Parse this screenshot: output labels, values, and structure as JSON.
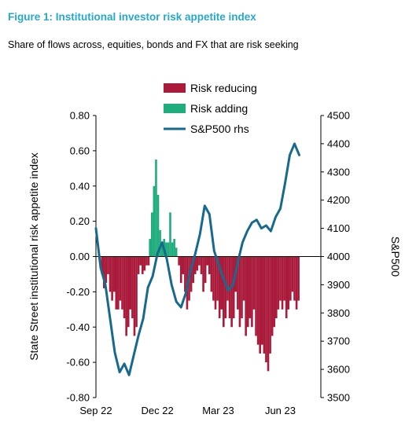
{
  "header": {
    "title": "Figure 1: Institutional investor risk appetite index",
    "subtitle": "Share of flows across, equities, bonds and FX that are risk seeking"
  },
  "chart_data": {
    "type": "bar",
    "ylabel": "State Street institutional risk appetite index",
    "y2label": "S&P500",
    "ylim": [
      -0.8,
      0.8
    ],
    "yticks": [
      "0.80",
      "0.60",
      "0.40",
      "0.20",
      "0.00",
      "-0.20",
      "-0.40",
      "-0.60",
      "-0.80"
    ],
    "y2lim": [
      3500,
      4500
    ],
    "y2ticks": [
      "4500",
      "4400",
      "4300",
      "4200",
      "4100",
      "4000",
      "3900",
      "3800",
      "3700",
      "3600",
      "3500"
    ],
    "xticks": [
      {
        "label": "Sep 22",
        "x": "2022-09-01"
      },
      {
        "label": "Dec 22",
        "x": "2022-12-01"
      },
      {
        "label": "Mar 23",
        "x": "2023-03-01"
      },
      {
        "label": "Jun 23",
        "x": "2023-06-01"
      }
    ],
    "xlim": [
      "2022-09-01",
      "2023-07-31"
    ],
    "legend_placement": "top-center",
    "grid": false,
    "colors": {
      "reducing": "#aa1a3a",
      "adding": "#1fad7d",
      "sp500": "#176a8e"
    },
    "series": [
      {
        "name": "Risk reducing",
        "color": "#aa1a3a",
        "x": [
          "2022-09-10",
          "2022-09-13",
          "2022-09-16",
          "2022-09-19",
          "2022-09-22",
          "2022-09-25",
          "2022-09-28",
          "2022-10-01",
          "2022-10-04",
          "2022-10-07",
          "2022-10-10",
          "2022-10-13",
          "2022-10-16",
          "2022-10-19",
          "2022-10-22",
          "2022-10-25",
          "2022-10-28",
          "2022-10-31",
          "2022-11-03",
          "2022-11-06",
          "2022-11-09",
          "2022-11-12",
          "2022-11-15",
          "2022-11-18",
          "2023-01-02",
          "2023-01-05",
          "2023-01-08",
          "2023-01-11",
          "2023-01-14",
          "2023-01-17",
          "2023-01-20",
          "2023-01-23",
          "2023-01-26",
          "2023-01-29",
          "2023-02-01",
          "2023-02-04",
          "2023-02-07",
          "2023-02-10",
          "2023-02-13",
          "2023-02-16",
          "2023-02-19",
          "2023-02-22",
          "2023-02-25",
          "2023-02-28",
          "2023-03-03",
          "2023-03-06",
          "2023-03-09",
          "2023-03-12",
          "2023-03-15",
          "2023-03-18",
          "2023-03-21",
          "2023-03-24",
          "2023-03-27",
          "2023-03-30",
          "2023-04-02",
          "2023-04-05",
          "2023-04-08",
          "2023-04-11",
          "2023-04-14",
          "2023-04-17",
          "2023-04-20",
          "2023-04-23",
          "2023-04-26",
          "2023-04-29",
          "2023-05-02",
          "2023-05-05",
          "2023-05-08",
          "2023-05-11",
          "2023-05-14",
          "2023-05-17",
          "2023-05-20",
          "2023-05-23",
          "2023-05-26",
          "2023-05-29",
          "2023-06-01",
          "2023-06-04",
          "2023-06-07",
          "2023-06-10",
          "2023-06-13",
          "2023-06-16",
          "2023-06-19",
          "2023-06-22",
          "2023-06-25",
          "2023-06-28"
        ],
        "values": [
          -0.1,
          -0.18,
          -0.15,
          -0.1,
          -0.2,
          -0.25,
          -0.2,
          -0.3,
          -0.3,
          -0.25,
          -0.3,
          -0.35,
          -0.45,
          -0.4,
          -0.3,
          -0.35,
          -0.45,
          -0.4,
          -0.1,
          -0.05,
          -0.1,
          -0.08,
          -0.05,
          -0.05,
          -0.05,
          -0.15,
          -0.1,
          -0.2,
          -0.3,
          -0.25,
          -0.2,
          -0.15,
          -0.1,
          -0.08,
          -0.05,
          -0.1,
          -0.2,
          -0.15,
          -0.05,
          -0.1,
          -0.2,
          -0.25,
          -0.3,
          -0.25,
          -0.35,
          -0.3,
          -0.4,
          -0.35,
          -0.25,
          -0.35,
          -0.4,
          -0.35,
          -0.2,
          -0.3,
          -0.4,
          -0.35,
          -0.25,
          -0.45,
          -0.4,
          -0.35,
          -0.4,
          -0.3,
          -0.45,
          -0.5,
          -0.55,
          -0.5,
          -0.55,
          -0.6,
          -0.65,
          -0.55,
          -0.45,
          -0.4,
          -0.35,
          -0.3,
          -0.25,
          -0.3,
          -0.25,
          -0.35,
          -0.3,
          -0.25,
          -0.2,
          -0.25,
          -0.3,
          -0.25
        ]
      },
      {
        "name": "Risk adding",
        "color": "#1fad7d",
        "x": [
          "2022-11-20",
          "2022-11-23",
          "2022-11-26",
          "2022-11-29",
          "2022-12-02",
          "2022-12-05",
          "2022-12-08",
          "2022-12-11",
          "2022-12-14",
          "2022-12-17",
          "2022-12-20",
          "2022-12-23",
          "2022-12-26",
          "2022-12-29"
        ],
        "values": [
          0.1,
          0.25,
          0.4,
          0.55,
          0.35,
          0.15,
          0.08,
          0.1,
          0.08,
          0.08,
          0.25,
          0.08,
          0.1,
          0.05
        ]
      },
      {
        "name": "S&P500 rhs",
        "color": "#176a8e",
        "axis": "right",
        "x": [
          "2022-09-01",
          "2022-09-08",
          "2022-09-15",
          "2022-09-22",
          "2022-09-29",
          "2022-10-06",
          "2022-10-13",
          "2022-10-20",
          "2022-10-27",
          "2022-11-03",
          "2022-11-10",
          "2022-11-17",
          "2022-11-24",
          "2022-12-01",
          "2022-12-08",
          "2022-12-15",
          "2022-12-22",
          "2022-12-29",
          "2023-01-05",
          "2023-01-12",
          "2023-01-19",
          "2023-01-26",
          "2023-02-02",
          "2023-02-09",
          "2023-02-16",
          "2023-02-23",
          "2023-03-02",
          "2023-03-09",
          "2023-03-16",
          "2023-03-23",
          "2023-03-30",
          "2023-04-06",
          "2023-04-13",
          "2023-04-20",
          "2023-04-27",
          "2023-05-04",
          "2023-05-11",
          "2023-05-18",
          "2023-05-25",
          "2023-06-01",
          "2023-06-08",
          "2023-06-15",
          "2023-06-22",
          "2023-06-29"
        ],
        "values": [
          4100,
          3960,
          3900,
          3780,
          3660,
          3590,
          3620,
          3580,
          3650,
          3720,
          3780,
          3890,
          3930,
          4010,
          4050,
          3990,
          3900,
          3840,
          3820,
          3870,
          3950,
          4010,
          4080,
          4180,
          4150,
          4020,
          3970,
          3920,
          3880,
          3900,
          3980,
          4050,
          4090,
          4120,
          4130,
          4100,
          4110,
          4090,
          4140,
          4170,
          4260,
          4360,
          4400,
          4360
        ]
      }
    ]
  }
}
